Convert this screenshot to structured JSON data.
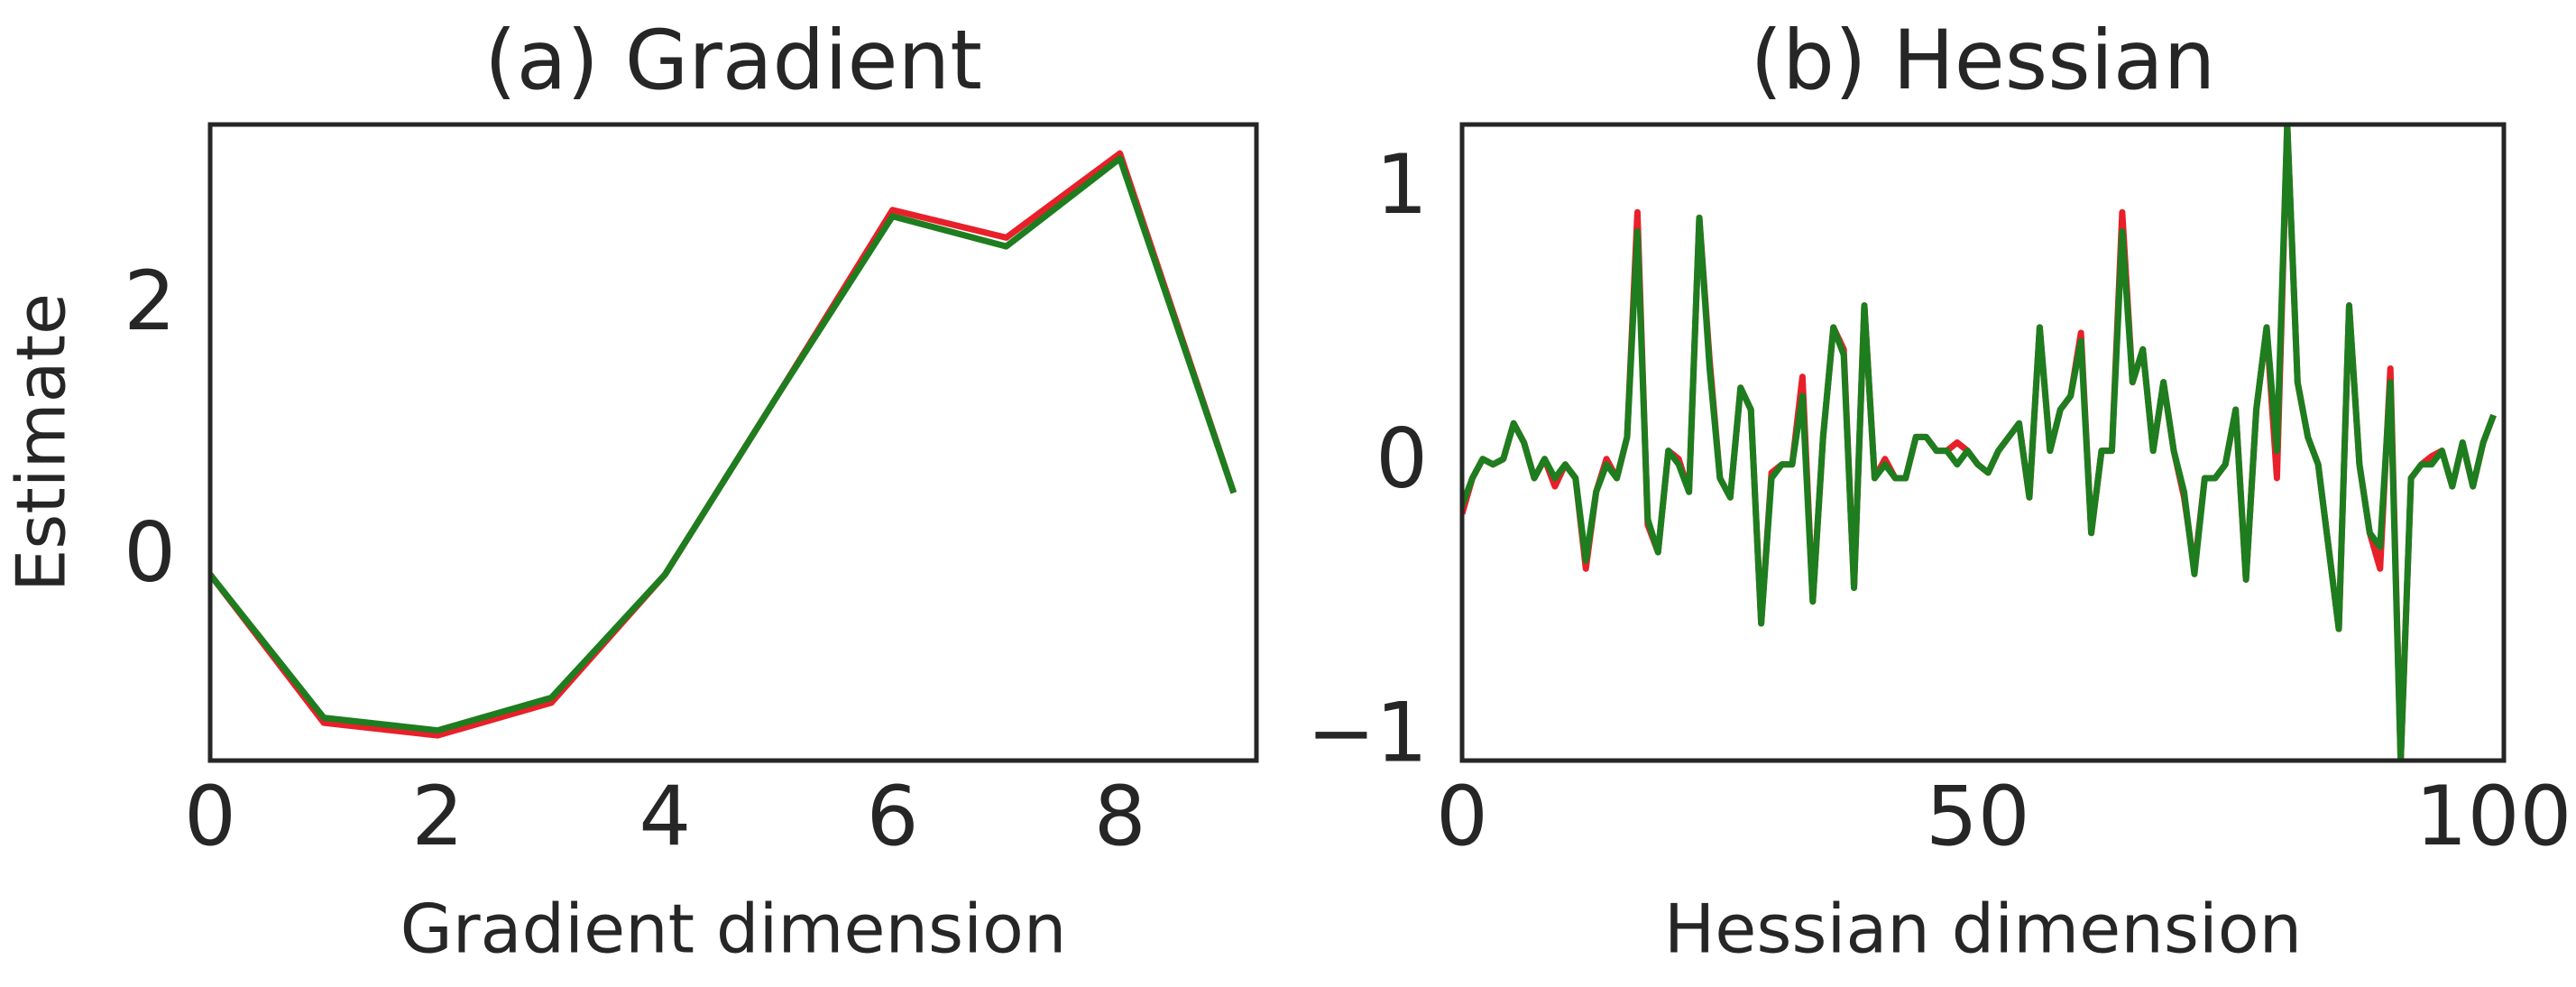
{
  "chart_data": [
    {
      "type": "line",
      "title": "(a) Gradient",
      "x_label": "Gradient dimension",
      "y_label": "Estimate",
      "x": [
        0,
        1,
        2,
        3,
        4,
        5,
        6,
        7,
        8,
        9
      ],
      "xlim": [
        0,
        9.2
      ],
      "ylim": [
        -1.61,
        3.45
      ],
      "xticks": [
        0,
        2,
        4,
        6,
        8
      ],
      "yticks": [
        0,
        2
      ],
      "series": [
        {
          "color": "#e8202a",
          "values": [
            -0.13,
            -1.31,
            -1.41,
            -1.15,
            -0.13,
            1.31,
            2.77,
            2.55,
            3.22,
            0.52
          ]
        },
        {
          "color": "#1e7d1e",
          "values": [
            -0.13,
            -1.27,
            -1.37,
            -1.11,
            -0.13,
            1.31,
            2.72,
            2.48,
            3.18,
            0.52
          ]
        }
      ]
    },
    {
      "type": "line",
      "title": "(b) Hessian",
      "x_label": "Hessian dimension",
      "x": [
        0,
        1,
        2,
        3,
        4,
        5,
        6,
        7,
        8,
        9,
        10,
        11,
        12,
        13,
        14,
        15,
        16,
        17,
        18,
        19,
        20,
        21,
        22,
        23,
        24,
        25,
        26,
        27,
        28,
        29,
        30,
        31,
        32,
        33,
        34,
        35,
        36,
        37,
        38,
        39,
        40,
        41,
        42,
        43,
        44,
        45,
        46,
        47,
        48,
        49,
        50,
        51,
        52,
        53,
        54,
        55,
        56,
        57,
        58,
        59,
        60,
        61,
        62,
        63,
        64,
        65,
        66,
        67,
        68,
        69,
        70,
        71,
        72,
        73,
        74,
        75,
        76,
        77,
        78,
        79,
        80,
        81,
        82,
        83,
        84,
        85,
        86,
        87,
        88,
        89,
        90,
        91,
        92,
        93,
        94,
        95,
        96,
        97,
        98,
        99,
        100
      ],
      "xlim": [
        0,
        101
      ],
      "ylim": [
        -1.08,
        1.24
      ],
      "xticks": [
        0,
        50,
        100
      ],
      "yticks": [
        {
          "value": -1,
          "label": "−1"
        },
        0,
        1
      ],
      "series": [
        {
          "color": "#e8202a",
          "values": [
            -0.18,
            -0.05,
            0.02,
            0.0,
            0.02,
            0.15,
            0.08,
            -0.05,
            0.02,
            -0.08,
            0.0,
            -0.05,
            -0.38,
            -0.1,
            0.02,
            -0.05,
            0.1,
            0.92,
            -0.22,
            -0.32,
            0.05,
            0.02,
            -0.1,
            0.9,
            0.38,
            -0.05,
            -0.12,
            0.28,
            0.2,
            -0.58,
            -0.03,
            0.0,
            0.0,
            0.32,
            -0.5,
            0.1,
            0.5,
            0.42,
            -0.45,
            0.58,
            -0.05,
            0.02,
            -0.05,
            -0.05,
            0.1,
            0.1,
            0.05,
            0.05,
            0.08,
            0.05,
            0.0,
            -0.03,
            0.05,
            0.1,
            0.15,
            -0.12,
            0.5,
            0.05,
            0.2,
            0.25,
            0.48,
            -0.25,
            0.05,
            0.05,
            0.92,
            0.3,
            0.42,
            0.05,
            0.3,
            0.05,
            -0.12,
            -0.38,
            -0.05,
            -0.05,
            0.0,
            0.2,
            -0.42,
            0.2,
            0.5,
            -0.05,
            1.24,
            0.3,
            0.1,
            0.0,
            -0.3,
            -0.6,
            0.58,
            0.0,
            -0.25,
            -0.38,
            0.35,
            -1.08,
            -0.05,
            0.0,
            0.03,
            0.05,
            -0.08,
            0.08,
            -0.08,
            0.08,
            0.18
          ]
        },
        {
          "color": "#1e7d1e",
          "values": [
            -0.15,
            -0.05,
            0.02,
            0.0,
            0.02,
            0.15,
            0.08,
            -0.05,
            0.02,
            -0.05,
            0.0,
            -0.05,
            -0.35,
            -0.1,
            0.0,
            -0.05,
            0.1,
            0.85,
            -0.2,
            -0.32,
            0.05,
            0.0,
            -0.1,
            0.9,
            0.35,
            -0.05,
            -0.12,
            0.28,
            0.2,
            -0.58,
            -0.05,
            0.0,
            0.0,
            0.25,
            -0.5,
            0.1,
            0.5,
            0.4,
            -0.45,
            0.58,
            -0.05,
            0.0,
            -0.05,
            -0.05,
            0.1,
            0.1,
            0.05,
            0.05,
            0.0,
            0.05,
            0.0,
            -0.03,
            0.05,
            0.1,
            0.15,
            -0.12,
            0.5,
            0.05,
            0.2,
            0.25,
            0.45,
            -0.25,
            0.05,
            0.05,
            0.85,
            0.3,
            0.42,
            0.05,
            0.3,
            0.05,
            -0.1,
            -0.4,
            -0.05,
            -0.05,
            0.0,
            0.2,
            -0.42,
            0.2,
            0.5,
            0.05,
            1.24,
            0.3,
            0.1,
            0.0,
            -0.3,
            -0.6,
            0.58,
            0.0,
            -0.25,
            -0.3,
            0.3,
            -1.08,
            -0.05,
            0.0,
            0.0,
            0.05,
            -0.08,
            0.08,
            -0.08,
            0.08,
            0.18
          ]
        }
      ]
    }
  ]
}
